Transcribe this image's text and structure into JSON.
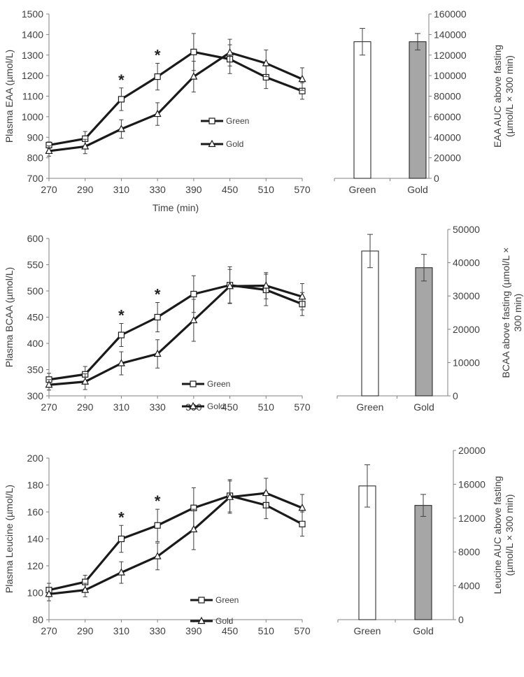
{
  "chart_data": [
    {
      "type": "line",
      "ylabel": "Plasma EAA (µmol/L)",
      "xlabel": "Time (min)",
      "categories": [
        "270",
        "290",
        "310",
        "330",
        "390",
        "450",
        "510",
        "570"
      ],
      "ylim": [
        700,
        1500
      ],
      "yticks": [
        "700",
        "800",
        "900",
        "1000",
        "1100",
        "1200",
        "1300",
        "1400",
        "1500"
      ],
      "series": [
        {
          "name": "Green",
          "marker": "square",
          "values": [
            862,
            893,
            1085,
            1195,
            1315,
            1280,
            1192,
            1125
          ],
          "errors": [
            15,
            35,
            55,
            65,
            90,
            70,
            55,
            40
          ]
        },
        {
          "name": "Gold",
          "marker": "triangle",
          "values": [
            833,
            855,
            940,
            1013,
            1195,
            1312,
            1260,
            1183
          ],
          "errors": [
            25,
            35,
            45,
            55,
            75,
            65,
            65,
            55
          ]
        }
      ],
      "significance": [
        {
          "category": "310",
          "label": "*"
        },
        {
          "category": "330",
          "label": "*"
        }
      ]
    },
    {
      "type": "bar",
      "ylabel": "EAA AUC above fasting (µmol/L × 300 min)",
      "ylabel_lines": [
        "EAA AUC above fasting",
        "(µmol/L × 300 min)"
      ],
      "categories": [
        "Green",
        "Gold"
      ],
      "values": [
        133000,
        133000
      ],
      "errors": [
        13000,
        8000
      ],
      "colors": [
        "#ffffff",
        "#a6a6a6"
      ],
      "ylim": [
        0,
        160000
      ],
      "yticks": [
        "0",
        "20000",
        "40000",
        "60000",
        "80000",
        "100000",
        "120000",
        "140000",
        "160000"
      ]
    },
    {
      "type": "line",
      "ylabel": "Plasma BCAA (µmol/L)",
      "categories": [
        "270",
        "290",
        "310",
        "330",
        "390",
        "450",
        "510",
        "570"
      ],
      "ylim": [
        300,
        600
      ],
      "yticks": [
        "300",
        "350",
        "400",
        "450",
        "500",
        "550",
        "600"
      ],
      "series": [
        {
          "name": "Green",
          "marker": "square",
          "values": [
            331,
            341,
            416,
            450,
            494,
            511,
            502,
            475
          ],
          "errors": [
            12,
            15,
            22,
            28,
            35,
            35,
            30,
            22
          ]
        },
        {
          "name": "Gold",
          "marker": "triangle",
          "values": [
            321,
            327,
            362,
            380,
            444,
            509,
            510,
            489
          ],
          "errors": [
            10,
            15,
            22,
            27,
            40,
            32,
            25,
            25
          ]
        }
      ],
      "significance": [
        {
          "category": "310",
          "label": "*"
        },
        {
          "category": "330",
          "label": "*"
        }
      ]
    },
    {
      "type": "bar",
      "ylabel": "BCAA above fasting (µmol/L × 300 min)",
      "ylabel_lines": [
        "BCAA above fasting (µmol/L ×",
        "300 min)"
      ],
      "categories": [
        "Green",
        "Gold"
      ],
      "values": [
        43500,
        38500
      ],
      "errors": [
        5000,
        4000
      ],
      "colors": [
        "#ffffff",
        "#a6a6a6"
      ],
      "ylim": [
        0,
        50000
      ],
      "yticks": [
        "0",
        "10000",
        "20000",
        "30000",
        "40000",
        "50000"
      ]
    },
    {
      "type": "line",
      "ylabel": "Plasma Leucine (µmol/L)",
      "categories": [
        "270",
        "290",
        "310",
        "330",
        "390",
        "450",
        "510",
        "570"
      ],
      "ylim": [
        80,
        200
      ],
      "yticks": [
        "80",
        "100",
        "120",
        "140",
        "160",
        "180",
        "200"
      ],
      "series": [
        {
          "name": "Green",
          "marker": "square",
          "values": [
            102,
            108,
            140,
            150,
            163,
            172,
            165,
            151
          ],
          "errors": [
            5,
            5,
            10,
            12,
            15,
            12,
            10,
            9
          ]
        },
        {
          "name": "Gold",
          "marker": "triangle",
          "values": [
            99,
            102,
            115,
            127,
            147,
            171,
            174,
            163
          ],
          "errors": [
            5,
            5,
            8,
            10,
            15,
            12,
            11,
            10
          ]
        }
      ],
      "significance": [
        {
          "category": "310",
          "label": "*"
        },
        {
          "category": "330",
          "label": "*"
        }
      ]
    },
    {
      "type": "bar",
      "ylabel": "Leucine AUC above fasting (µmol/L × 300 min)",
      "ylabel_lines": [
        "Leucine AUC above fasting",
        "(µmol/L × 300 min)"
      ],
      "categories": [
        "Green",
        "Gold"
      ],
      "values": [
        15800,
        13500
      ],
      "errors": [
        2500,
        1300
      ],
      "colors": [
        "#ffffff",
        "#a6a6a6"
      ],
      "ylim": [
        0,
        20000
      ],
      "yticks": [
        "0",
        "4000",
        "8000",
        "12000",
        "16000",
        "20000"
      ]
    }
  ]
}
